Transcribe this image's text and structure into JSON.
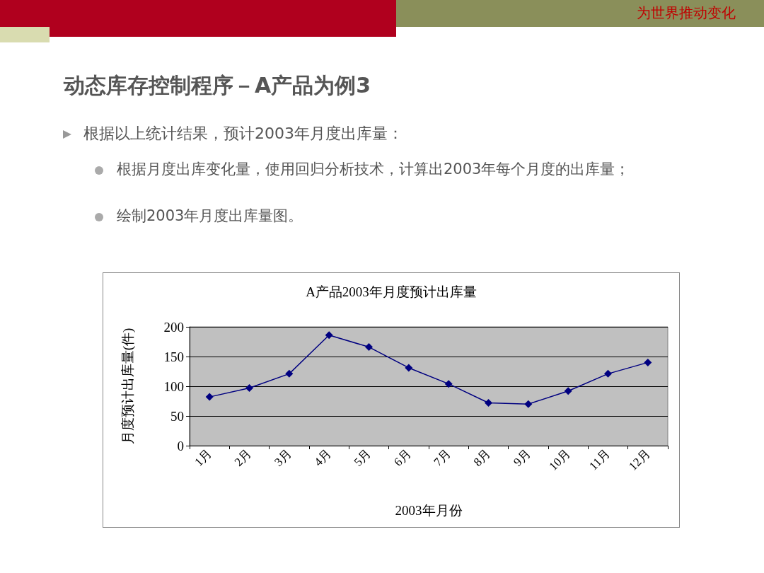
{
  "chart_data": {
    "type": "line",
    "title": "A产品2003年月度预计出库量",
    "xlabel": "2003年月份",
    "ylabel": "月度预计出库量(件)",
    "annotations": [
      "为世界推动变化",
      "动态库存控制程序－A产品为例3",
      "根据以上统计结果，预计2003年月度出库量：",
      "根据月度出库变化量，使用回归分析技术，计算出2003年每个月度的出库量；",
      "绘制2003年月度出库量图。"
    ],
    "categories": [
      "1月",
      "2月",
      "3月",
      "4月",
      "5月",
      "6月",
      "7月",
      "8月",
      "9月",
      "10月",
      "11月",
      "12月"
    ],
    "series": [
      {
        "color": "#000080",
        "values": [
          82,
          97,
          121,
          186,
          166,
          131,
          104,
          72,
          70,
          92,
          121,
          140
        ]
      }
    ],
    "ylim": [
      0,
      200
    ],
    "yticks": [
      0,
      50,
      100,
      150,
      200
    ],
    "grid": "y",
    "marker": "diamond"
  }
}
